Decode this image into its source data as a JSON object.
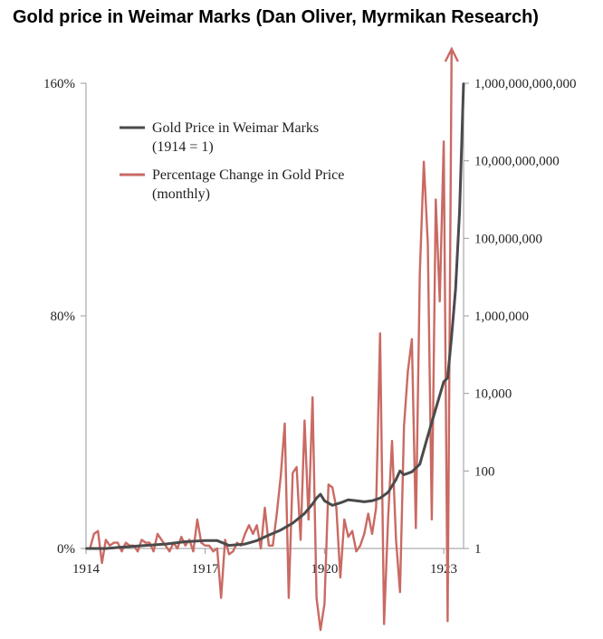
{
  "title": "Gold price in Weimar Marks (Dan Oliver, Myrmikan Research)",
  "chart_data": {
    "type": "line",
    "title": "Gold price in Weimar Marks (Dan Oliver, Myrmikan Research)",
    "xlabel": "",
    "ylabel_left": "",
    "ylabel_right": "",
    "x_range": [
      1914,
      1923.5
    ],
    "x_ticks": [
      1914,
      1917,
      1920,
      1923
    ],
    "x_tick_labels": [
      "1914",
      "1917",
      "1920",
      "1923"
    ],
    "y_left_range": [
      0,
      160
    ],
    "y_left_ticks": [
      0,
      80,
      160
    ],
    "y_left_tick_labels": [
      "0%",
      "80%",
      "160%"
    ],
    "y_right_scale": "log10",
    "y_right_range_exp": [
      0,
      12
    ],
    "y_right_ticks_exp": [
      0,
      2,
      4,
      6,
      8,
      10,
      12
    ],
    "y_right_tick_labels": [
      "1",
      "100",
      "10,000",
      "1,000,000",
      "100,000,000",
      "10,000,000,000",
      "1,000,000,000,000"
    ],
    "colors": {
      "gold": "#4a4a4a",
      "change": "#c96a63",
      "axis": "#999999"
    },
    "legend_position": "top-left",
    "series": [
      {
        "name": "Gold Price in Weimar Marks",
        "label_lines": [
          "Gold Price in Weimar Marks",
          "(1914 = 1)"
        ],
        "axis": "right",
        "x": [
          1914.0,
          1914.5,
          1915.0,
          1915.5,
          1916.0,
          1916.5,
          1917.0,
          1917.3,
          1917.6,
          1918.0,
          1918.3,
          1918.6,
          1918.9,
          1919.2,
          1919.5,
          1919.7,
          1919.8,
          1919.9,
          1920.0,
          1920.2,
          1920.4,
          1920.6,
          1920.8,
          1921.0,
          1921.2,
          1921.4,
          1921.6,
          1921.8,
          1921.9,
          1922.0,
          1922.2,
          1922.4,
          1922.6,
          1922.8,
          1923.0,
          1923.1,
          1923.2,
          1923.3,
          1923.4,
          1923.5
        ],
        "values": [
          1,
          1,
          1.1,
          1.2,
          1.3,
          1.5,
          1.6,
          1.6,
          1.2,
          1.3,
          1.6,
          2.2,
          3,
          4.5,
          8,
          14,
          20,
          25,
          17,
          13,
          15,
          18,
          17,
          16,
          17,
          20,
          28,
          60,
          100,
          80,
          95,
          150,
          800,
          4000,
          20000,
          25000,
          300000,
          5000000,
          500000000,
          1000000000000
        ]
      },
      {
        "name": "Percentage Change in Gold Price",
        "label_lines": [
          "Percentage Change in Gold Price",
          "(monthly)"
        ],
        "axis": "left",
        "unit": "%",
        "x": [
          1914.0,
          1914.1,
          1914.2,
          1914.3,
          1914.4,
          1914.5,
          1914.6,
          1914.7,
          1914.8,
          1914.9,
          1915.0,
          1915.1,
          1915.2,
          1915.3,
          1915.4,
          1915.5,
          1915.6,
          1915.7,
          1915.8,
          1915.9,
          1916.0,
          1916.1,
          1916.2,
          1916.3,
          1916.4,
          1916.5,
          1916.6,
          1916.7,
          1916.8,
          1916.9,
          1917.0,
          1917.1,
          1917.2,
          1917.3,
          1917.4,
          1917.5,
          1917.6,
          1917.7,
          1917.8,
          1917.9,
          1918.0,
          1918.1,
          1918.2,
          1918.3,
          1918.4,
          1918.5,
          1918.6,
          1918.7,
          1918.8,
          1918.9,
          1919.0,
          1919.1,
          1919.2,
          1919.3,
          1919.4,
          1919.5,
          1919.6,
          1919.7,
          1919.8,
          1919.9,
          1920.0,
          1920.1,
          1920.2,
          1920.3,
          1920.4,
          1920.5,
          1920.6,
          1920.7,
          1920.8,
          1920.9,
          1921.0,
          1921.1,
          1921.2,
          1921.3,
          1921.4,
          1921.5,
          1921.6,
          1921.7,
          1921.8,
          1921.9,
          1922.0,
          1922.1,
          1922.2,
          1922.3,
          1922.4,
          1922.5,
          1922.6,
          1922.7,
          1922.8,
          1922.9,
          1923.0,
          1923.1,
          1923.2
        ],
        "values": [
          0,
          0,
          5,
          6,
          -5,
          3,
          1,
          2,
          2,
          -1,
          2,
          1,
          1,
          -1,
          3,
          2,
          2,
          -1,
          5,
          3,
          1,
          -1,
          2,
          0,
          4,
          1,
          3,
          -1,
          10,
          2,
          1,
          1,
          -1,
          0,
          -17,
          3,
          -2,
          -1,
          2,
          1,
          5,
          8,
          5,
          8,
          0,
          14,
          1,
          1,
          12,
          25,
          43,
          -17,
          26,
          28,
          3,
          44,
          10,
          52,
          -17,
          -28,
          -19,
          22,
          21,
          14,
          -10,
          10,
          4,
          6,
          -1,
          1,
          5,
          12,
          5,
          14,
          74,
          -26,
          10,
          37,
          3,
          -15,
          42,
          61,
          72,
          7,
          95,
          133,
          105,
          10,
          120,
          85,
          140,
          -25,
          172
        ]
      }
    ]
  }
}
